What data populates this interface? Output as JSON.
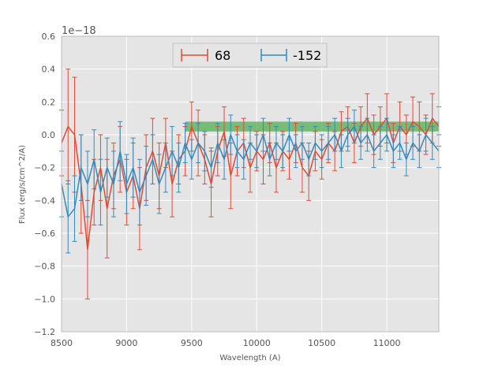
{
  "chart_data": {
    "type": "line",
    "title": "",
    "xlabel": "Wavelength (A)",
    "ylabel": "Flux (erg/s/cm^2/A)",
    "y_offset_label": "1e−18",
    "xlim": [
      8500,
      11400
    ],
    "ylim": [
      -1.2,
      0.6
    ],
    "x_ticks": [
      8500,
      9000,
      9500,
      10000,
      10500,
      11000
    ],
    "x_tick_labels": [
      "8500",
      "9000",
      "9500",
      "10000",
      "10500",
      "11000"
    ],
    "y_ticks": [
      -1.2,
      -1.0,
      -0.8,
      -0.6,
      -0.4,
      -0.2,
      0.0,
      0.2,
      0.4,
      0.6
    ],
    "y_tick_labels": [
      "−1.2",
      "−1.0",
      "−0.8",
      "−0.6",
      "−0.4",
      "−0.2",
      "0.0",
      "0.2",
      "0.4",
      "0.6"
    ],
    "grid": true,
    "legend_position": "top-center",
    "background": "#e5e5e5",
    "band": {
      "x_start": 9450,
      "x_end": 11400,
      "y_low": 0.02,
      "y_high": 0.08,
      "color": "#2ca02c"
    },
    "series": [
      {
        "name": "68",
        "color": "#e24a33",
        "x": [
          8500,
          8550,
          8600,
          8650,
          8700,
          8750,
          8800,
          8850,
          8900,
          8950,
          9000,
          9050,
          9100,
          9150,
          9200,
          9250,
          9300,
          9350,
          9400,
          9450,
          9500,
          9550,
          9600,
          9650,
          9700,
          9750,
          9800,
          9850,
          9900,
          9950,
          10000,
          10050,
          10100,
          10150,
          10200,
          10250,
          10300,
          10350,
          10400,
          10450,
          10500,
          10550,
          10600,
          10650,
          10700,
          10750,
          10800,
          10850,
          10900,
          10950,
          11000,
          11050,
          11100,
          11150,
          11200,
          11250,
          11300,
          11350,
          11400
        ],
        "y": [
          -0.05,
          0.05,
          0.0,
          -0.3,
          -0.7,
          -0.35,
          -0.2,
          -0.45,
          -0.25,
          -0.15,
          -0.35,
          -0.25,
          -0.45,
          -0.2,
          -0.1,
          -0.25,
          -0.05,
          -0.3,
          -0.15,
          -0.1,
          0.05,
          -0.05,
          -0.15,
          -0.3,
          -0.1,
          0.02,
          -0.25,
          -0.1,
          -0.05,
          -0.2,
          -0.1,
          -0.15,
          -0.05,
          -0.2,
          -0.1,
          -0.15,
          -0.05,
          -0.2,
          -0.25,
          -0.1,
          -0.15,
          -0.05,
          -0.1,
          0.02,
          0.05,
          -0.05,
          0.05,
          0.1,
          0.0,
          0.05,
          0.1,
          -0.05,
          0.05,
          0.0,
          0.08,
          0.05,
          0.0,
          0.1,
          0.05
        ],
        "err": [
          0.2,
          0.35,
          0.35,
          0.3,
          0.3,
          0.2,
          0.2,
          0.3,
          0.2,
          0.2,
          0.2,
          0.2,
          0.25,
          0.2,
          0.2,
          0.2,
          0.15,
          0.2,
          0.15,
          0.15,
          0.15,
          0.2,
          0.15,
          0.2,
          0.15,
          0.15,
          0.2,
          0.15,
          0.15,
          0.15,
          0.12,
          0.15,
          0.12,
          0.15,
          0.12,
          0.12,
          0.12,
          0.15,
          0.15,
          0.12,
          0.12,
          0.12,
          0.12,
          0.12,
          0.12,
          0.12,
          0.12,
          0.15,
          0.12,
          0.12,
          0.15,
          0.12,
          0.15,
          0.12,
          0.15,
          0.15,
          0.12,
          0.15,
          0.12
        ]
      },
      {
        "name": "-152",
        "color": "#348abd",
        "x": [
          8500,
          8550,
          8600,
          8650,
          8700,
          8750,
          8800,
          8850,
          8900,
          8950,
          9000,
          9050,
          9100,
          9150,
          9200,
          9250,
          9300,
          9350,
          9400,
          9450,
          9500,
          9550,
          9600,
          9650,
          9700,
          9750,
          9800,
          9850,
          9900,
          9950,
          10000,
          10050,
          10100,
          10150,
          10200,
          10250,
          10300,
          10350,
          10400,
          10450,
          10500,
          10550,
          10600,
          10650,
          10700,
          10750,
          10800,
          10850,
          10900,
          10950,
          11000,
          11050,
          11100,
          11150,
          11200,
          11250,
          11300,
          11350,
          11400
        ],
        "y": [
          -0.3,
          -0.5,
          -0.45,
          -0.2,
          -0.3,
          -0.15,
          -0.35,
          -0.2,
          -0.3,
          -0.1,
          -0.3,
          -0.2,
          -0.35,
          -0.25,
          -0.15,
          -0.3,
          -0.2,
          -0.1,
          -0.2,
          -0.05,
          -0.15,
          -0.05,
          -0.1,
          -0.2,
          -0.05,
          -0.15,
          0.0,
          -0.1,
          -0.15,
          -0.05,
          -0.1,
          0.0,
          -0.15,
          -0.05,
          -0.1,
          0.0,
          -0.1,
          -0.05,
          -0.15,
          -0.05,
          -0.1,
          -0.05,
          0.0,
          -0.1,
          0.0,
          0.05,
          -0.05,
          0.0,
          -0.1,
          -0.05,
          0.0,
          -0.1,
          -0.05,
          -0.15,
          -0.05,
          -0.1,
          0.0,
          -0.05,
          -0.1
        ],
        "err": [
          0.2,
          0.22,
          0.2,
          0.2,
          0.2,
          0.18,
          0.2,
          0.18,
          0.2,
          0.18,
          0.18,
          0.18,
          0.2,
          0.18,
          0.15,
          0.18,
          0.15,
          0.15,
          0.15,
          0.12,
          0.12,
          0.12,
          0.12,
          0.12,
          0.12,
          0.12,
          0.12,
          0.1,
          0.12,
          0.1,
          0.1,
          0.1,
          0.1,
          0.1,
          0.1,
          0.1,
          0.1,
          0.1,
          0.1,
          0.1,
          0.1,
          0.1,
          0.1,
          0.1,
          0.1,
          0.1,
          0.1,
          0.1,
          0.1,
          0.1,
          0.1,
          0.1,
          0.1,
          0.1,
          0.1,
          0.1,
          0.1,
          0.1,
          0.1
        ]
      }
    ]
  }
}
